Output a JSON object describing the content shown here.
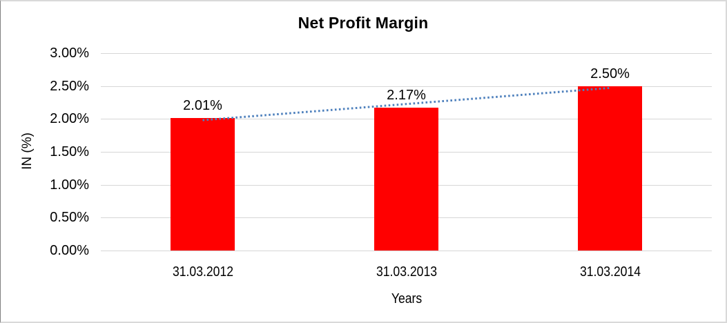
{
  "chart_data": {
    "type": "bar",
    "title": "Net Profit Margin",
    "categories": [
      "31.03.2012",
      "31.03.2013",
      "31.03.2014"
    ],
    "values": [
      2.01,
      2.17,
      2.5
    ],
    "data_labels": [
      "2.01%",
      "2.17%",
      "2.50%"
    ],
    "xlabel": "Years",
    "ylabel": "IN (%)",
    "ylim": [
      0,
      3
    ],
    "y_tick_step": 0.5,
    "y_tick_labels": [
      "3.00%",
      "2.50%",
      "2.00%",
      "1.50%",
      "1.00%",
      "0.50%",
      "0.00%"
    ],
    "grid": true,
    "legend": "none",
    "bar_color": "#FF0000",
    "gridline_color": "#D6D6D6",
    "frame_border_color": "#D9D9D9",
    "trendline": {
      "type": "linear",
      "style": "dotted",
      "color": "#4F81BD"
    }
  }
}
